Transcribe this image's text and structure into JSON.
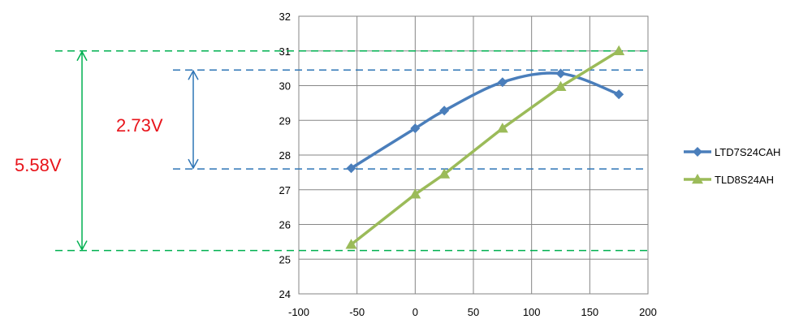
{
  "chart_data": {
    "type": "line",
    "title": "",
    "xlabel": "",
    "ylabel": "",
    "xlim": [
      -100,
      200
    ],
    "ylim": [
      24,
      32
    ],
    "x_ticks": [
      -100,
      -50,
      0,
      50,
      100,
      150,
      200
    ],
    "y_ticks": [
      24,
      25,
      26,
      27,
      28,
      29,
      30,
      31,
      32
    ],
    "grid": true,
    "legend_position": "right",
    "series": [
      {
        "name": "LTD7S24CAH",
        "color": "#4a7ebb",
        "marker": "diamond",
        "smooth": true,
        "x": [
          -55,
          0,
          25,
          75,
          125,
          175
        ],
        "y": [
          27.62,
          28.77,
          29.28,
          30.1,
          30.35,
          29.75
        ]
      },
      {
        "name": "TLD8S24AH",
        "color": "#9bbb59",
        "marker": "triangle",
        "smooth": false,
        "x": [
          -55,
          0,
          25,
          75,
          125,
          175
        ],
        "y": [
          25.42,
          26.87,
          27.45,
          28.77,
          29.97,
          31.0
        ]
      }
    ],
    "annotations": [
      {
        "label": "2.73V",
        "from": 27.6,
        "to": 30.45,
        "line_color": "#2e75b6",
        "arrow_color": "#2e75b6",
        "text_color": "#e8141b"
      },
      {
        "label": "5.58V",
        "from": 25.25,
        "to": 31.0,
        "line_color": "#00b050",
        "arrow_color": "#00b050",
        "text_color": "#e8141b"
      }
    ]
  }
}
